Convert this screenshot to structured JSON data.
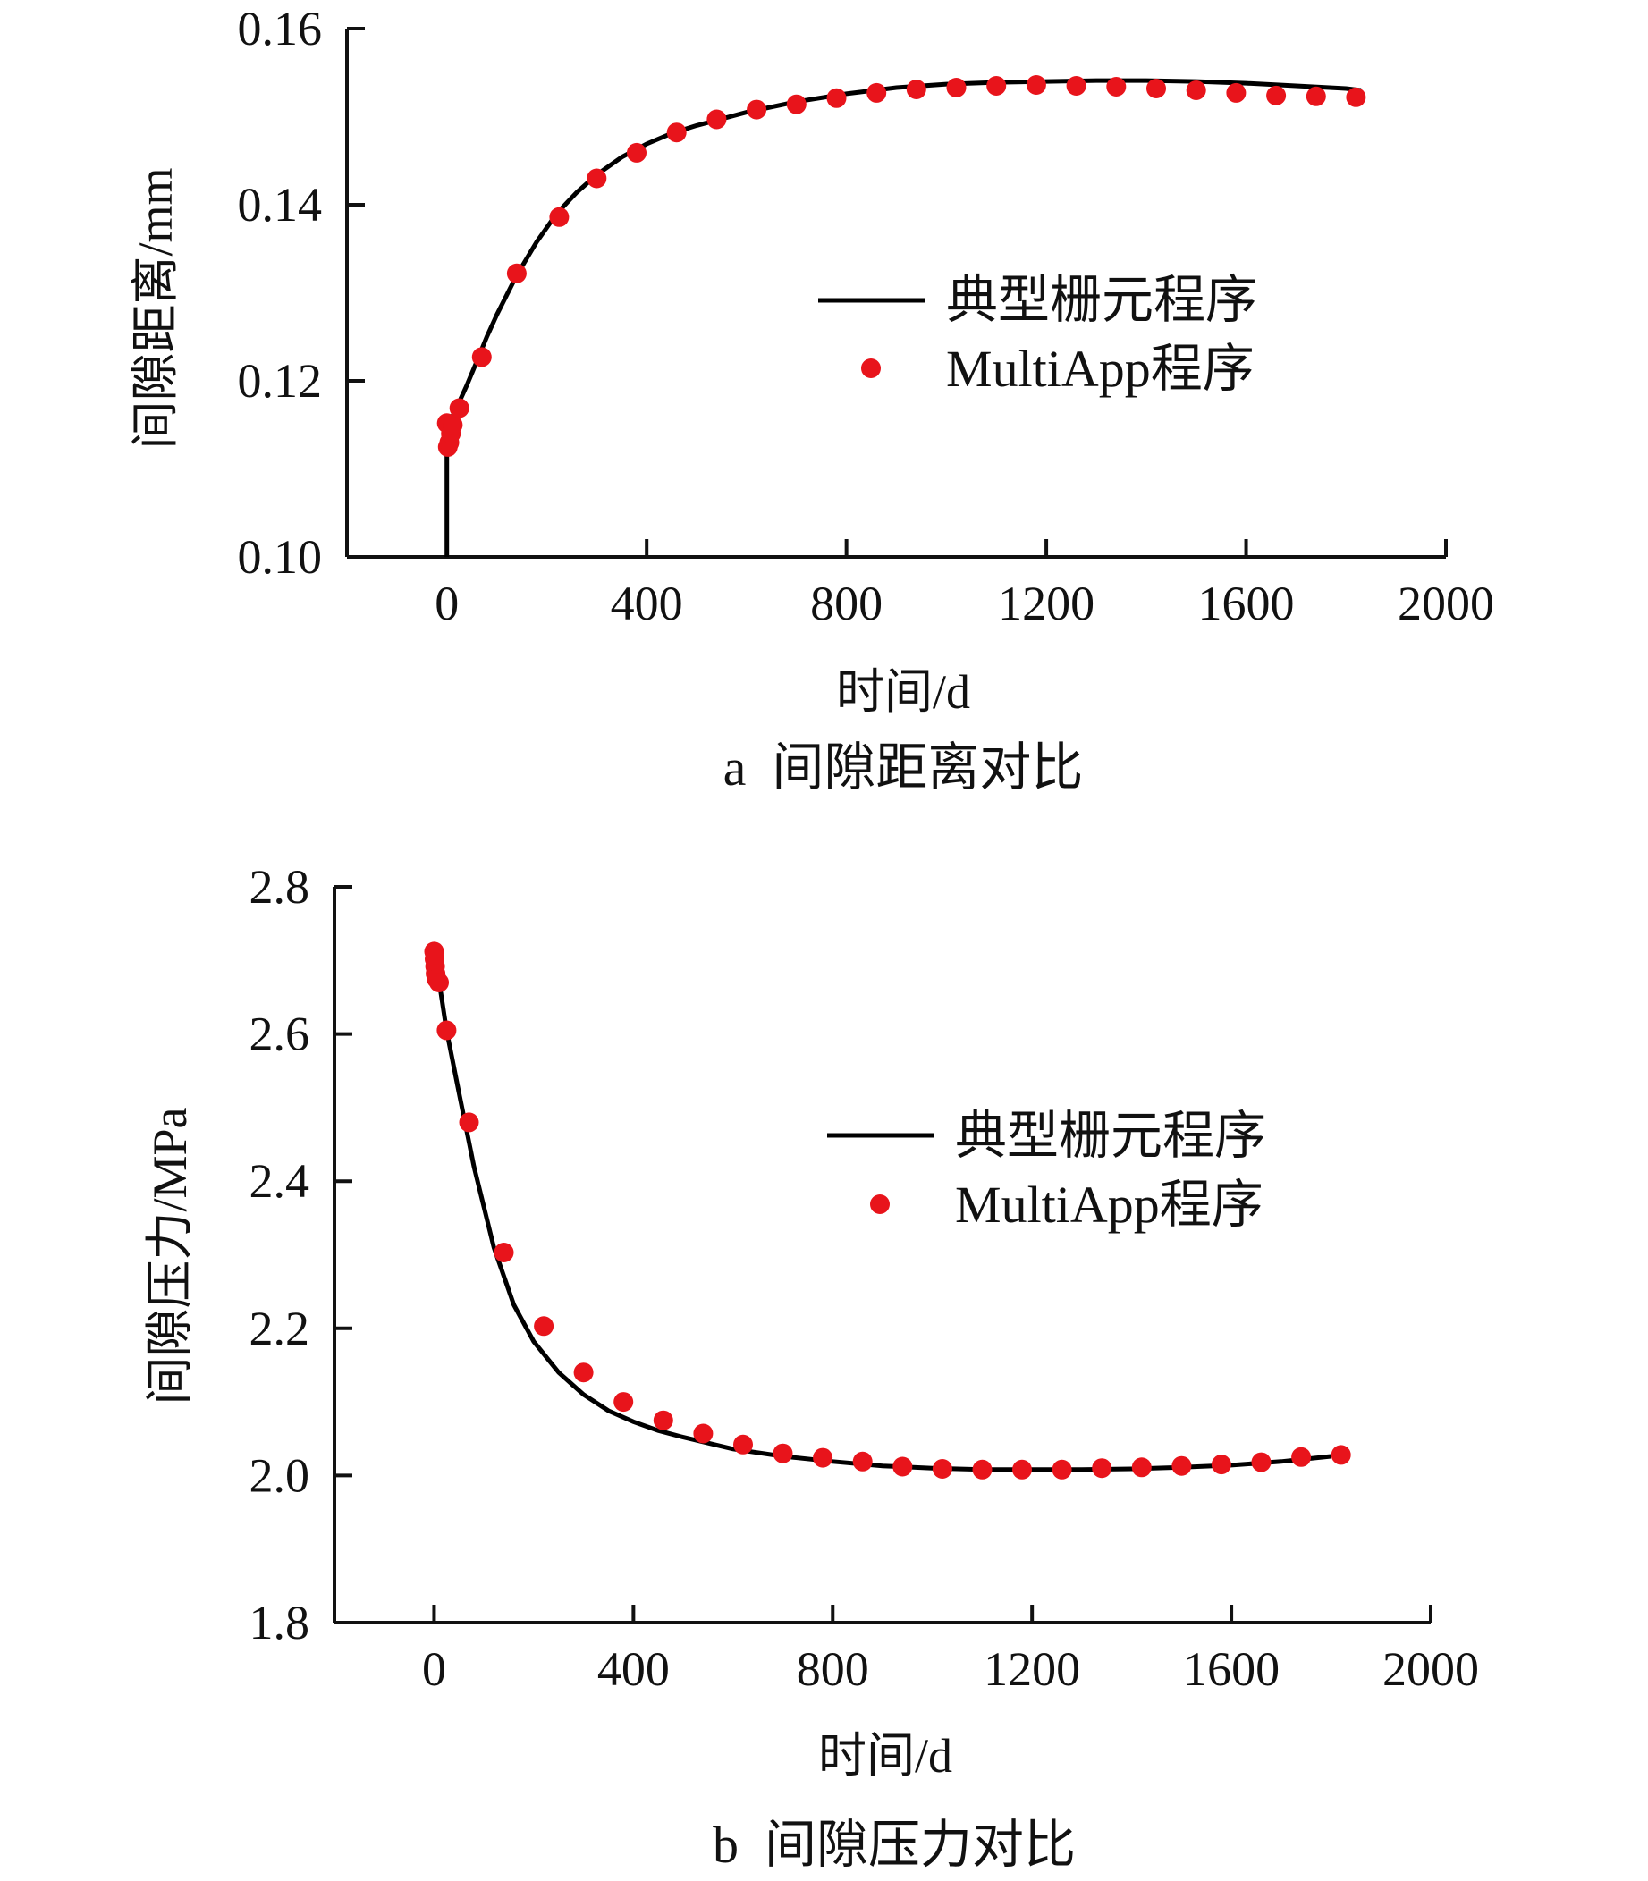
{
  "colors": {
    "line": "#000000",
    "marker": "#e8141b"
  },
  "chart_data": [
    {
      "type": "line",
      "caption": "a  间隙距离对比",
      "xlabel": "时间/d",
      "ylabel": "间隙距离/mm",
      "xlim": [
        -200,
        2000
      ],
      "ylim": [
        0.1,
        0.16
      ],
      "xticks": [
        "0",
        "400",
        "800",
        "1200",
        "1600",
        "2000"
      ],
      "yticks": [
        "0.10",
        "0.12",
        "0.14",
        "0.16"
      ],
      "legend": {
        "position": "center-right",
        "items": [
          "典型栅元程序",
          "MultiApp程序"
        ]
      },
      "series": [
        {
          "name": "典型栅元程序",
          "style": "line",
          "x": [
            0,
            0,
            2,
            5,
            10,
            20,
            40,
            60,
            80,
            100,
            140,
            180,
            220,
            260,
            300,
            350,
            400,
            450,
            500,
            600,
            700,
            800,
            900,
            1000,
            1100,
            1200,
            1300,
            1400,
            1500,
            1600,
            1700,
            1800,
            1830
          ],
          "y": [
            0.1,
            0.1125,
            0.1138,
            0.1148,
            0.1158,
            0.117,
            0.1195,
            0.1222,
            0.125,
            0.1275,
            0.132,
            0.1358,
            0.139,
            0.1414,
            0.1434,
            0.1454,
            0.1469,
            0.1481,
            0.149,
            0.1505,
            0.1517,
            0.1526,
            0.1533,
            0.1537,
            0.1539,
            0.154,
            0.1541,
            0.1541,
            0.154,
            0.1538,
            0.1535,
            0.1532,
            0.153
          ]
        },
        {
          "name": "MultiApp程序",
          "style": "scatter",
          "x": [
            0,
            2,
            5,
            8,
            12,
            25,
            70,
            140,
            225,
            300,
            380,
            460,
            540,
            620,
            700,
            780,
            860,
            940,
            1020,
            1100,
            1180,
            1260,
            1340,
            1420,
            1500,
            1580,
            1660,
            1740,
            1820
          ],
          "y": [
            0.1152,
            0.1125,
            0.113,
            0.114,
            0.115,
            0.1169,
            0.1227,
            0.1322,
            0.1386,
            0.143,
            0.1459,
            0.1482,
            0.1497,
            0.1508,
            0.1514,
            0.1521,
            0.1527,
            0.1531,
            0.1533,
            0.1535,
            0.1536,
            0.1535,
            0.1534,
            0.1532,
            0.153,
            0.1527,
            0.1524,
            0.1523,
            0.1522
          ]
        }
      ]
    },
    {
      "type": "line",
      "caption": "b  间隙压力对比",
      "xlabel": "时间/d",
      "ylabel": "间隙压力/MPa",
      "xlim": [
        -200,
        2000
      ],
      "ylim": [
        1.8,
        2.8
      ],
      "xticks": [
        "0",
        "400",
        "800",
        "1200",
        "1600",
        "2000"
      ],
      "yticks": [
        "1.8",
        "2.0",
        "2.2",
        "2.4",
        "2.6",
        "2.8"
      ],
      "legend": {
        "position": "center-right",
        "items": [
          "典型栅元程序",
          "MultiApp程序"
        ]
      },
      "series": [
        {
          "name": "典型栅元程序",
          "style": "line",
          "x": [
            0,
            10,
            25,
            50,
            80,
            120,
            160,
            200,
            250,
            300,
            350,
            400,
            450,
            500,
            600,
            700,
            800,
            900,
            1000,
            1100,
            1200,
            1300,
            1400,
            1500,
            1600,
            1700,
            1800
          ],
          "y": [
            2.7,
            2.672,
            2.605,
            2.52,
            2.42,
            2.31,
            2.232,
            2.182,
            2.14,
            2.11,
            2.088,
            2.073,
            2.061,
            2.052,
            2.036,
            2.026,
            2.019,
            2.013,
            2.01,
            2.008,
            2.008,
            2.008,
            2.009,
            2.011,
            2.014,
            2.019,
            2.026
          ]
        },
        {
          "name": "MultiApp程序",
          "style": "scatter",
          "x": [
            0,
            1,
            2,
            3,
            5,
            10,
            25,
            70,
            140,
            220,
            300,
            380,
            460,
            540,
            620,
            700,
            780,
            860,
            940,
            1020,
            1100,
            1180,
            1260,
            1340,
            1420,
            1500,
            1580,
            1660,
            1740,
            1820
          ],
          "y": [
            2.712,
            2.702,
            2.692,
            2.682,
            2.675,
            2.67,
            2.605,
            2.48,
            2.303,
            2.203,
            2.14,
            2.1,
            2.075,
            2.057,
            2.042,
            2.03,
            2.024,
            2.019,
            2.012,
            2.009,
            2.008,
            2.008,
            2.008,
            2.01,
            2.011,
            2.013,
            2.015,
            2.018,
            2.025,
            2.028
          ]
        }
      ]
    }
  ]
}
